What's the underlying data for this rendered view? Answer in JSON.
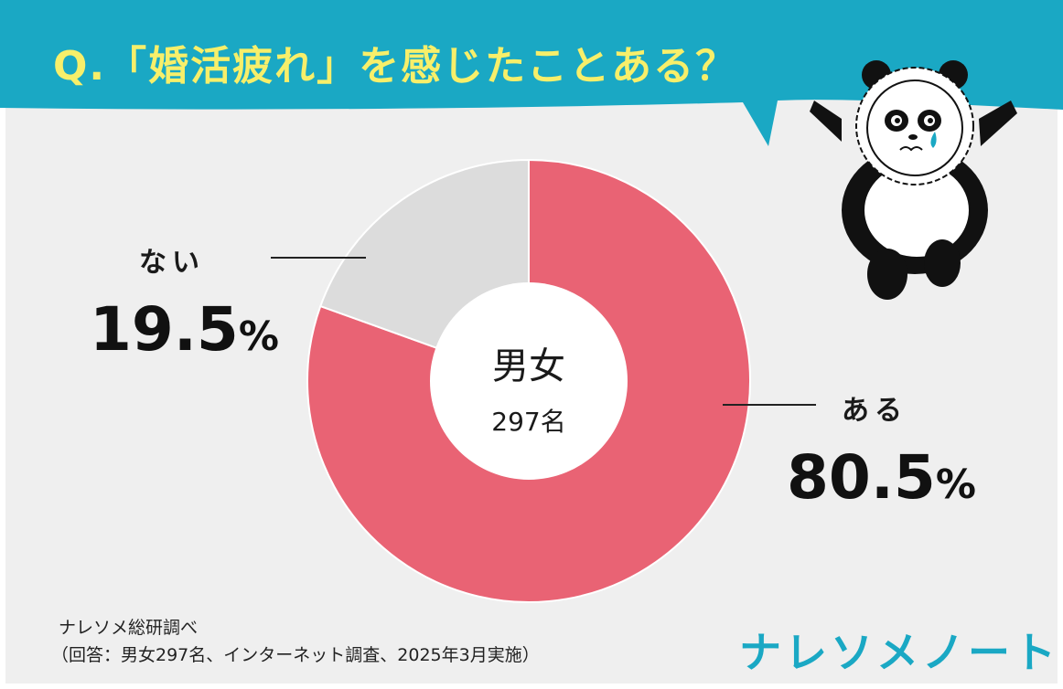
{
  "question": "Q.「婚活疲れ」を感じたことある？",
  "colors": {
    "banner": "#1aa8c4",
    "title_text": "#f7ef6a",
    "background": "#efefef",
    "aru": "#e96374",
    "nai": "#dcdcdc",
    "logo": "#1aa8c4"
  },
  "chart_data": {
    "type": "pie",
    "style": "donut",
    "center_title": "男女",
    "center_sub": "297名",
    "slices": [
      {
        "label": "ある",
        "value": 80.5,
        "display": "80.5",
        "unit": "%",
        "color": "#e96374"
      },
      {
        "label": "ない",
        "value": 19.5,
        "display": "19.5",
        "unit": "%",
        "color": "#dcdcdc"
      }
    ]
  },
  "source": {
    "line1": "ナレソメ総研調べ",
    "line2": "（回答：男女297名、インターネット調査、2025年3月実施）"
  },
  "logo": "ナレソメノート",
  "illustration": "crying-panda-icon"
}
